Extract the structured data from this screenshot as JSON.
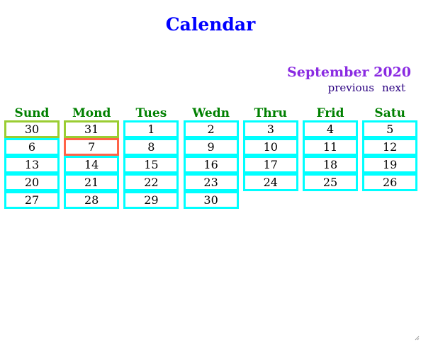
{
  "page": {
    "title": "Calendar"
  },
  "calendar": {
    "month_label": "September 2020",
    "nav": {
      "previous": "previous",
      "next": "next"
    },
    "day_headers": [
      "Sund",
      "Mond",
      "Tues",
      "Wedn",
      "Thru",
      "Frid",
      "Satu"
    ],
    "weeks": [
      [
        {
          "day": "30",
          "state": "other"
        },
        {
          "day": "31",
          "state": "other"
        },
        {
          "day": "1",
          "state": "current"
        },
        {
          "day": "2",
          "state": "current"
        },
        {
          "day": "3",
          "state": "current"
        },
        {
          "day": "4",
          "state": "current"
        },
        {
          "day": "5",
          "state": "current"
        }
      ],
      [
        {
          "day": "6",
          "state": "current"
        },
        {
          "day": "7",
          "state": "today"
        },
        {
          "day": "8",
          "state": "current"
        },
        {
          "day": "9",
          "state": "current"
        },
        {
          "day": "10",
          "state": "current"
        },
        {
          "day": "11",
          "state": "current"
        },
        {
          "day": "12",
          "state": "current"
        }
      ],
      [
        {
          "day": "13",
          "state": "current"
        },
        {
          "day": "14",
          "state": "current"
        },
        {
          "day": "15",
          "state": "current"
        },
        {
          "day": "16",
          "state": "current"
        },
        {
          "day": "17",
          "state": "current"
        },
        {
          "day": "18",
          "state": "current"
        },
        {
          "day": "19",
          "state": "current"
        }
      ],
      [
        {
          "day": "20",
          "state": "current"
        },
        {
          "day": "21",
          "state": "current"
        },
        {
          "day": "22",
          "state": "current"
        },
        {
          "day": "23",
          "state": "current"
        },
        {
          "day": "24",
          "state": "current"
        },
        {
          "day": "25",
          "state": "current"
        },
        {
          "day": "26",
          "state": "current"
        }
      ],
      [
        {
          "day": "27",
          "state": "current"
        },
        {
          "day": "28",
          "state": "current"
        },
        {
          "day": "29",
          "state": "current"
        },
        {
          "day": "30",
          "state": "current"
        }
      ]
    ]
  },
  "colors": {
    "title": "#0000ff",
    "month_label": "#8a2be2",
    "nav_links": "#2a0080",
    "day_headers": "#008000",
    "cell_border_current": "#00ffff",
    "cell_border_other_month": "#9acd32",
    "cell_border_today": "#ff6347"
  },
  "icons": {
    "resize_grip": "resize-grip-icon"
  }
}
